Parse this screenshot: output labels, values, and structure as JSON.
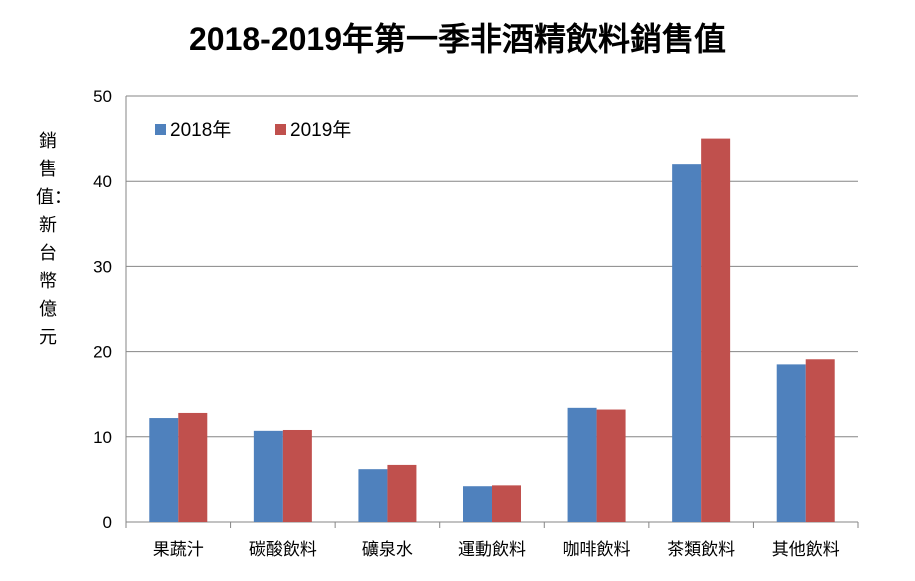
{
  "chart_data": {
    "type": "bar",
    "title": "2018-2019年第一季非酒精飲料銷售值",
    "ylabel": "銷售值：新台幣億元",
    "xlabel": "",
    "categories": [
      "果蔬汁",
      "碳酸飲料",
      "礦泉水",
      "運動飲料",
      "咖啡飲料",
      "茶類飲料",
      "其他飲料"
    ],
    "series": [
      {
        "name": "2018年",
        "color": "#4F81BD",
        "values": [
          12.2,
          10.7,
          6.2,
          4.2,
          13.4,
          42.0,
          18.5
        ]
      },
      {
        "name": "2019年",
        "color": "#C0504D",
        "values": [
          12.8,
          10.8,
          6.7,
          4.3,
          13.2,
          45.0,
          19.1
        ]
      }
    ],
    "ylim": [
      0,
      50
    ],
    "yticks": [
      0,
      10,
      20,
      30,
      40,
      50
    ],
    "grid": true,
    "legend_position": "top-left"
  }
}
